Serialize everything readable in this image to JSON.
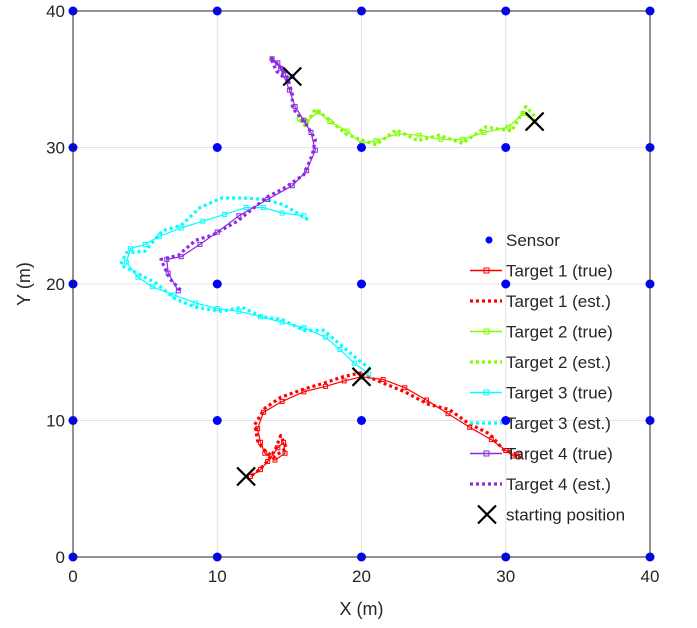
{
  "chart_data": {
    "type": "scatter",
    "xlabel": "X (m)",
    "ylabel": "Y (m)",
    "xlim": [
      0,
      40
    ],
    "ylim": [
      0,
      40
    ],
    "xticks": [
      "0",
      "10",
      "20",
      "30",
      "40"
    ],
    "yticks": [
      "0",
      "10",
      "20",
      "30",
      "40"
    ],
    "grid": true,
    "legend_position": "right",
    "sensors": {
      "name": "Sensor",
      "color": "#0000ff",
      "points": [
        [
          0,
          0
        ],
        [
          10,
          0
        ],
        [
          20,
          0
        ],
        [
          30,
          0
        ],
        [
          40,
          0
        ],
        [
          0,
          10
        ],
        [
          10,
          10
        ],
        [
          20,
          10
        ],
        [
          30,
          10
        ],
        [
          40,
          10
        ],
        [
          0,
          20
        ],
        [
          10,
          20
        ],
        [
          20,
          20
        ],
        [
          30,
          20
        ],
        [
          40,
          20
        ],
        [
          0,
          30
        ],
        [
          10,
          30
        ],
        [
          20,
          30
        ],
        [
          30,
          30
        ],
        [
          40,
          30
        ],
        [
          0,
          40
        ],
        [
          10,
          40
        ],
        [
          20,
          40
        ],
        [
          30,
          40
        ],
        [
          40,
          40
        ]
      ]
    },
    "series": [
      {
        "name": "Target 1 (true)",
        "color": "#ff0000",
        "style": "solid-marker",
        "points": [
          [
            20,
            13.2
          ],
          [
            21.5,
            13.0
          ],
          [
            23,
            12.4
          ],
          [
            24.5,
            11.5
          ],
          [
            26,
            10.5
          ],
          [
            27.5,
            9.5
          ],
          [
            29,
            8.6
          ],
          [
            30,
            7.8
          ],
          [
            30.5,
            7.4
          ],
          [
            31,
            7.5
          ]
        ]
      },
      {
        "name": "Target 1 (est.)",
        "color": "#ff0000",
        "style": "dotted",
        "points": [
          [
            20,
            13.4
          ],
          [
            21.6,
            12.7
          ],
          [
            23,
            12.1
          ],
          [
            24.6,
            11.2
          ],
          [
            26.1,
            10.8
          ],
          [
            27.4,
            9.8
          ],
          [
            28.9,
            9.0
          ],
          [
            29.8,
            7.9
          ],
          [
            30.6,
            7.6
          ],
          [
            31.1,
            7.2
          ]
        ]
      },
      {
        "name": "Target 1 (true)",
        "color": "#ff0000",
        "style": "solid-marker",
        "points": [
          [
            20,
            13.2
          ],
          [
            18.8,
            12.9
          ],
          [
            17.5,
            12.5
          ],
          [
            16,
            12.1
          ],
          [
            14.5,
            11.4
          ],
          [
            13.2,
            10.6
          ],
          [
            12.8,
            9.4
          ],
          [
            13,
            8.4
          ],
          [
            13.3,
            7.6
          ],
          [
            14,
            7.1
          ],
          [
            14.7,
            7.6
          ],
          [
            14.6,
            8.4
          ],
          [
            14.2,
            8.0
          ],
          [
            13.5,
            7.0
          ],
          [
            13,
            6.4
          ],
          [
            12.3,
            5.9
          ]
        ]
      },
      {
        "name": "Target 1 (est.)",
        "color": "#ff0000",
        "style": "dotted",
        "points": [
          [
            20,
            13.5
          ],
          [
            18.7,
            13.2
          ],
          [
            17.3,
            12.7
          ],
          [
            16,
            12.3
          ],
          [
            14.4,
            11.7
          ],
          [
            13.3,
            10.9
          ],
          [
            12.6,
            9.7
          ],
          [
            12.8,
            8.5
          ],
          [
            13.2,
            7.9
          ],
          [
            13.9,
            7.3
          ],
          [
            14.8,
            8.0
          ],
          [
            14.4,
            8.9
          ],
          [
            14,
            7.8
          ],
          [
            13.3,
            6.8
          ],
          [
            12.7,
            6.2
          ],
          [
            12.1,
            5.8
          ]
        ]
      },
      {
        "name": "Target 2 (true)",
        "color": "#7fff00",
        "style": "solid-marker",
        "points": [
          [
            32,
            31.9
          ],
          [
            31.2,
            32.5
          ],
          [
            30.2,
            31.5
          ],
          [
            28.5,
            31.1
          ],
          [
            27,
            30.6
          ],
          [
            25.5,
            30.6
          ],
          [
            24,
            30.9
          ],
          [
            22.5,
            31
          ],
          [
            21,
            30.5
          ],
          [
            20,
            30.3
          ],
          [
            19,
            31.2
          ],
          [
            17.8,
            31.9
          ],
          [
            17,
            32.6
          ],
          [
            16.2,
            31.9
          ],
          [
            15.7,
            32.1
          ]
        ]
      },
      {
        "name": "Target 2 (est.)",
        "color": "#7fff00",
        "style": "dotted",
        "points": [
          [
            32,
            32.3
          ],
          [
            31.4,
            33.0
          ],
          [
            30.4,
            31.2
          ],
          [
            28.6,
            31.5
          ],
          [
            27,
            30.3
          ],
          [
            25.4,
            30.9
          ],
          [
            23.9,
            30.5
          ],
          [
            22.4,
            31.3
          ],
          [
            21,
            30.2
          ],
          [
            19.9,
            30.6
          ],
          [
            18.9,
            31.0
          ],
          [
            17.7,
            32.1
          ],
          [
            16.8,
            32.8
          ],
          [
            16.1,
            31.6
          ],
          [
            15.5,
            32.2
          ]
        ]
      },
      {
        "name": "Target 3 (true)",
        "color": "#00ffff",
        "style": "solid-marker",
        "points": [
          [
            16,
            25
          ],
          [
            14.5,
            25.2
          ],
          [
            13.2,
            25.6
          ],
          [
            12,
            25.6
          ],
          [
            10.5,
            25.1
          ],
          [
            9,
            24.6
          ],
          [
            7.5,
            24.1
          ],
          [
            6,
            23.5
          ],
          [
            5,
            22.9
          ],
          [
            4,
            22.6
          ],
          [
            3.7,
            21.6
          ],
          [
            4.5,
            20.5
          ],
          [
            5.5,
            19.8
          ],
          [
            7,
            19.2
          ],
          [
            8.5,
            18.6
          ],
          [
            10,
            18.2
          ],
          [
            11.5,
            18.0
          ],
          [
            13,
            17.6
          ],
          [
            14.5,
            17.2
          ],
          [
            16,
            16.8
          ],
          [
            17.5,
            16.1
          ],
          [
            18.5,
            15.2
          ],
          [
            19.5,
            14.2
          ],
          [
            20.5,
            13.4
          ]
        ]
      },
      {
        "name": "Target 3 (est.)",
        "color": "#00ffff",
        "style": "dotted",
        "points": [
          [
            16.3,
            24.7
          ],
          [
            14.6,
            25.8
          ],
          [
            13.3,
            26.2
          ],
          [
            11.8,
            26.3
          ],
          [
            10.3,
            26.3
          ],
          [
            8.8,
            25.6
          ],
          [
            7.5,
            24.3
          ],
          [
            6.2,
            23.9
          ],
          [
            5,
            22.4
          ],
          [
            3.7,
            22.3
          ],
          [
            3.3,
            21.4
          ],
          [
            4.6,
            20.7
          ],
          [
            5.7,
            20.1
          ],
          [
            7.1,
            18.9
          ],
          [
            8.5,
            18.3
          ],
          [
            10.3,
            18.0
          ],
          [
            11.7,
            18.3
          ],
          [
            13.1,
            17.6
          ],
          [
            14.5,
            17.4
          ],
          [
            16,
            16.6
          ],
          [
            17.4,
            16.6
          ],
          [
            18.6,
            15.5
          ],
          [
            19.6,
            14.6
          ],
          [
            20.7,
            13.7
          ]
        ]
      },
      {
        "name": "Target 4 (true)",
        "color": "#8b2be2",
        "style": "solid-marker",
        "points": [
          [
            15.2,
            35.2
          ],
          [
            14.4,
            35.8
          ],
          [
            13.8,
            36.5
          ],
          [
            14.2,
            36.2
          ],
          [
            14.6,
            35.3
          ],
          [
            15,
            34.2
          ],
          [
            15.4,
            33
          ],
          [
            16,
            32
          ],
          [
            16.5,
            31.1
          ],
          [
            16.8,
            29.8
          ],
          [
            16.2,
            28.3
          ],
          [
            15.2,
            27.2
          ],
          [
            13.5,
            26.2
          ],
          [
            11.5,
            25
          ],
          [
            10,
            23.8
          ],
          [
            8.8,
            22.9
          ],
          [
            7.5,
            22
          ],
          [
            6.5,
            21.8
          ],
          [
            6.6,
            20.8
          ],
          [
            7.3,
            19.5
          ]
        ]
      },
      {
        "name": "Target 4 (est.)",
        "color": "#8b2be2",
        "style": "dotted",
        "points": [
          [
            14.9,
            34.9
          ],
          [
            14.1,
            35.6
          ],
          [
            13.7,
            36.6
          ],
          [
            14.3,
            36
          ],
          [
            14.9,
            35.1
          ],
          [
            15.2,
            33.9
          ],
          [
            15.2,
            32.9
          ],
          [
            16.1,
            31.8
          ],
          [
            16.8,
            30.6
          ],
          [
            16.6,
            29.5
          ],
          [
            16,
            28
          ],
          [
            14.6,
            27
          ],
          [
            13.5,
            26.4
          ],
          [
            11.4,
            24.6
          ],
          [
            9.7,
            23.6
          ],
          [
            8.5,
            23.2
          ],
          [
            7.3,
            22.1
          ],
          [
            6.1,
            21.8
          ],
          [
            6.7,
            20.4
          ],
          [
            7.6,
            19.4
          ]
        ]
      }
    ],
    "starting_positions": {
      "name": "starting position",
      "points": [
        [
          15.2,
          35.2
        ],
        [
          32,
          31.9
        ],
        [
          20,
          13.2
        ],
        [
          12,
          5.9
        ]
      ]
    },
    "legend": [
      {
        "label": "Sensor",
        "kind": "dot",
        "color": "#0000ff"
      },
      {
        "label": "Target 1 (true)",
        "kind": "solid",
        "color": "#ff0000"
      },
      {
        "label": "Target 1 (est.)",
        "kind": "dotted",
        "color": "#ff0000"
      },
      {
        "label": "Target 2 (true)",
        "kind": "solid",
        "color": "#7fff00"
      },
      {
        "label": "Target 2 (est.)",
        "kind": "dotted",
        "color": "#7fff00"
      },
      {
        "label": "Target 3 (true)",
        "kind": "solid",
        "color": "#00ffff"
      },
      {
        "label": "Target 3 (est.)",
        "kind": "dotted",
        "color": "#00ffff"
      },
      {
        "label": "Target 4 (true)",
        "kind": "solid",
        "color": "#8b2be2"
      },
      {
        "label": "Target 4 (est.)",
        "kind": "dotted",
        "color": "#8b2be2"
      },
      {
        "label": "starting position",
        "kind": "cross",
        "color": "#000000"
      }
    ]
  }
}
